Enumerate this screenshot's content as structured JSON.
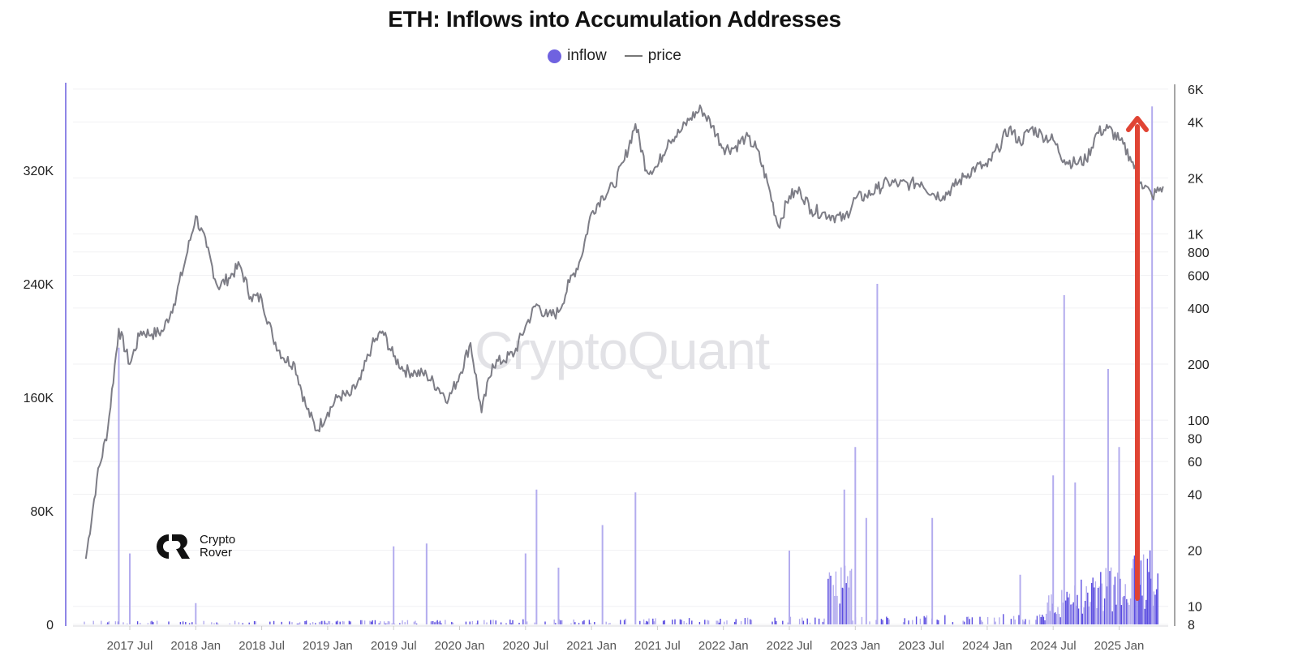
{
  "title": "ETH: Inflows into Accumulation Addresses",
  "legend": [
    {
      "label": "inflow",
      "type": "dot",
      "color": "#6f62e0"
    },
    {
      "label": "price",
      "type": "line",
      "color": "#777777"
    }
  ],
  "watermark": "CryptoQuant",
  "logo": {
    "line1": "Crypto",
    "line2": "Rover"
  },
  "colors": {
    "inflow": "#5b4de0",
    "inflow_light": "#b3acee",
    "price": "#7d7d86",
    "arrow": "#e04434",
    "axis_left": "#8f86e6",
    "axis_right": "#888888",
    "grid": "#f0f0f2"
  },
  "chart_data": {
    "type": "bar+line",
    "title": "ETH: Inflows into Accumulation Addresses",
    "legend": [
      "inflow",
      "price"
    ],
    "legend_position": "top-center",
    "grid": true,
    "x_tick_labels": [
      "2017 Jul",
      "2018 Jan",
      "2018 Jul",
      "2019 Jan",
      "2019 Jul",
      "2020 Jan",
      "2020 Jul",
      "2021 Jan",
      "2021 Jul",
      "2022 Jan",
      "2022 Jul",
      "2023 Jan",
      "2023 Jul",
      "2024 Jan",
      "2024 Jul",
      "2025 Jan"
    ],
    "y_left": {
      "label": "inflow",
      "ticks": [
        "0",
        "80K",
        "160K",
        "240K",
        "320K"
      ],
      "range": [
        0,
        370000
      ],
      "scale": "linear"
    },
    "y_right": {
      "label": "price",
      "ticks": [
        "8",
        "10",
        "20",
        "40",
        "60",
        "80",
        "100",
        "200",
        "400",
        "600",
        "800",
        "1K",
        "2K",
        "4K",
        "6K"
      ],
      "range": [
        8,
        6000
      ],
      "scale": "log"
    },
    "series": [
      {
        "name": "price",
        "type": "line",
        "points": [
          [
            "2017-03",
            18
          ],
          [
            "2017-04",
            48
          ],
          [
            "2017-05",
            90
          ],
          [
            "2017-06",
            310
          ],
          [
            "2017-07",
            200
          ],
          [
            "2017-08",
            300
          ],
          [
            "2017-09",
            290
          ],
          [
            "2017-10",
            300
          ],
          [
            "2017-11",
            420
          ],
          [
            "2017-12",
            700
          ],
          [
            "2018-01",
            1250
          ],
          [
            "2018-02",
            850
          ],
          [
            "2018-03",
            520
          ],
          [
            "2018-04",
            580
          ],
          [
            "2018-05",
            680
          ],
          [
            "2018-06",
            460
          ],
          [
            "2018-07",
            450
          ],
          [
            "2018-08",
            280
          ],
          [
            "2018-09",
            215
          ],
          [
            "2018-10",
            200
          ],
          [
            "2018-11",
            120
          ],
          [
            "2018-12",
            88
          ],
          [
            "2019-01",
            110
          ],
          [
            "2019-02",
            135
          ],
          [
            "2019-03",
            135
          ],
          [
            "2019-04",
            165
          ],
          [
            "2019-05",
            250
          ],
          [
            "2019-06",
            300
          ],
          [
            "2019-07",
            220
          ],
          [
            "2019-08",
            185
          ],
          [
            "2019-09",
            180
          ],
          [
            "2019-10",
            175
          ],
          [
            "2019-11",
            150
          ],
          [
            "2019-12",
            130
          ],
          [
            "2020-01",
            175
          ],
          [
            "2020-02",
            260
          ],
          [
            "2020-03",
            110
          ],
          [
            "2020-04",
            200
          ],
          [
            "2020-05",
            210
          ],
          [
            "2020-06",
            230
          ],
          [
            "2020-07",
            320
          ],
          [
            "2020-08",
            420
          ],
          [
            "2020-09",
            360
          ],
          [
            "2020-10",
            380
          ],
          [
            "2020-11",
            550
          ],
          [
            "2020-12",
            730
          ],
          [
            "2021-01",
            1300
          ],
          [
            "2021-02",
            1600
          ],
          [
            "2021-03",
            1800
          ],
          [
            "2021-04",
            2500
          ],
          [
            "2021-05",
            3900
          ],
          [
            "2021-06",
            2200
          ],
          [
            "2021-07",
            2300
          ],
          [
            "2021-08",
            3200
          ],
          [
            "2021-09",
            3500
          ],
          [
            "2021-10",
            4200
          ],
          [
            "2021-11",
            4700
          ],
          [
            "2021-12",
            3800
          ],
          [
            "2022-01",
            2900
          ],
          [
            "2022-02",
            2900
          ],
          [
            "2022-03",
            3300
          ],
          [
            "2022-04",
            2900
          ],
          [
            "2022-05",
            1900
          ],
          [
            "2022-06",
            1100
          ],
          [
            "2022-07",
            1600
          ],
          [
            "2022-08",
            1700
          ],
          [
            "2022-09",
            1350
          ],
          [
            "2022-10",
            1300
          ],
          [
            "2022-11",
            1250
          ],
          [
            "2022-12",
            1200
          ],
          [
            "2023-01",
            1550
          ],
          [
            "2023-02",
            1600
          ],
          [
            "2023-03",
            1750
          ],
          [
            "2023-04",
            1900
          ],
          [
            "2023-05",
            1850
          ],
          [
            "2023-06",
            1850
          ],
          [
            "2023-07",
            1900
          ],
          [
            "2023-08",
            1650
          ],
          [
            "2023-09",
            1600
          ],
          [
            "2023-10",
            1800
          ],
          [
            "2023-11",
            2050
          ],
          [
            "2023-12",
            2300
          ],
          [
            "2024-01",
            2300
          ],
          [
            "2024-02",
            2900
          ],
          [
            "2024-03",
            3700
          ],
          [
            "2024-04",
            3100
          ],
          [
            "2024-05",
            3700
          ],
          [
            "2024-06",
            3400
          ],
          [
            "2024-07",
            3200
          ],
          [
            "2024-08",
            2500
          ],
          [
            "2024-09",
            2400
          ],
          [
            "2024-10",
            2500
          ],
          [
            "2024-11",
            3500
          ],
          [
            "2024-12",
            3700
          ],
          [
            "2025-01",
            3200
          ],
          [
            "2025-02",
            2600
          ],
          [
            "2025-03",
            1900
          ],
          [
            "2025-04",
            1600
          ],
          [
            "2025-05",
            1800
          ]
        ]
      },
      {
        "name": "inflow",
        "type": "bar",
        "notable_spikes": [
          [
            "2017-06",
            195000
          ],
          [
            "2017-07",
            50000
          ],
          [
            "2018-01",
            15000
          ],
          [
            "2019-07",
            55000
          ],
          [
            "2019-10",
            57000
          ],
          [
            "2020-07",
            50000
          ],
          [
            "2020-08",
            95000
          ],
          [
            "2020-10",
            40000
          ],
          [
            "2021-02",
            70000
          ],
          [
            "2021-05",
            93000
          ],
          [
            "2022-07",
            52000
          ],
          [
            "2022-12",
            95000
          ],
          [
            "2023-01",
            125000
          ],
          [
            "2023-02",
            75000
          ],
          [
            "2023-03",
            240000
          ],
          [
            "2023-08",
            75000
          ],
          [
            "2024-04",
            35000
          ],
          [
            "2024-07",
            105000
          ],
          [
            "2024-08",
            232000
          ],
          [
            "2024-09",
            100000
          ],
          [
            "2024-12",
            180000
          ],
          [
            "2025-01",
            125000
          ],
          [
            "2025-04",
            365000
          ]
        ]
      }
    ],
    "annotations": [
      {
        "type": "arrow",
        "color": "red",
        "direction": "up",
        "x": "2025-03",
        "from_y_right": 12,
        "to_y_right": 4500
      }
    ]
  }
}
